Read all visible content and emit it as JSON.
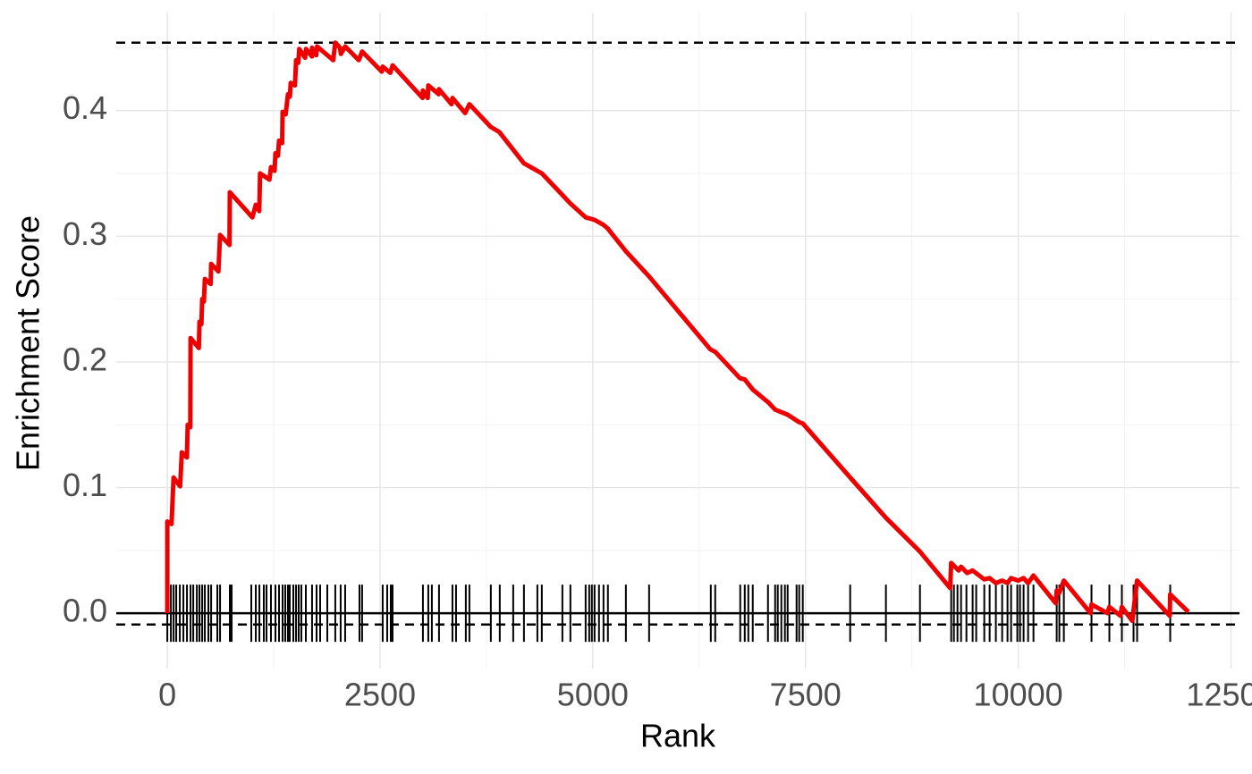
{
  "chart_data": {
    "type": "line",
    "xlabel": "Rank",
    "ylabel": "Enrichment Score",
    "xlim": [
      -600,
      12600
    ],
    "ylim": [
      -0.044,
      0.478
    ],
    "xticks": [
      0,
      2500,
      5000,
      7500,
      10000,
      12500
    ],
    "yticks": [
      {
        "value": 0,
        "label": "0.0"
      },
      0.1,
      0.2,
      0.3,
      0.4
    ],
    "minor_xticks": [
      1250,
      3750,
      6250,
      8750,
      11250
    ],
    "minor_yticks": [
      0.05,
      0.15,
      0.25,
      0.35,
      0.45
    ],
    "grid": true,
    "reference_lines": {
      "dashed": [
        0.454,
        -0.009
      ],
      "solid": [
        0
      ]
    },
    "series": [
      {
        "color": "#ee0000",
        "x": [
          0,
          0,
          50,
          74,
          150,
          170,
          230,
          240,
          270,
          273,
          370,
          378,
          400,
          410,
          430,
          441,
          510,
          515,
          600,
          620,
          730,
          735,
          1000,
          1040,
          1080,
          1090,
          1200,
          1218,
          1260,
          1271,
          1300,
          1313,
          1350,
          1355,
          1390,
          1418,
          1440,
          1450,
          1500,
          1513,
          1540,
          1550,
          1620,
          1630,
          1700,
          1701,
          1750,
          1760,
          1950,
          1974,
          2030,
          2040,
          2090,
          2250,
          2289,
          2520,
          2531,
          2620,
          2647,
          3000,
          3004,
          3060,
          3067,
          3190,
          3193,
          3340,
          3351,
          3500,
          3550,
          3800,
          3900,
          4190,
          4349,
          4401,
          4640,
          4737,
          4916,
          5021,
          5126,
          5178,
          5389,
          5662,
          6380,
          6439,
          6730,
          6786,
          6880,
          7059,
          7143,
          7290,
          7426,
          7468,
          8025,
          8445,
          8845,
          9200,
          9212,
          9300,
          9328,
          9400,
          9464,
          9600,
          9664,
          9737,
          9811,
          9874,
          9916,
          10000,
          10063,
          10116,
          10179,
          10440,
          10452,
          10480,
          10536,
          10850,
          10861,
          11050,
          11071,
          11200,
          11218,
          11340,
          11397,
          11780,
          11786,
          12000
        ],
        "values": [
          0,
          0.073,
          0.071,
          0.108,
          0.101,
          0.128,
          0.124,
          0.15,
          0.148,
          0.219,
          0.211,
          0.232,
          0.23,
          0.25,
          0.248,
          0.266,
          0.262,
          0.278,
          0.272,
          0.301,
          0.293,
          0.335,
          0.315,
          0.325,
          0.32,
          0.35,
          0.345,
          0.355,
          0.352,
          0.366,
          0.364,
          0.376,
          0.374,
          0.399,
          0.397,
          0.413,
          0.411,
          0.422,
          0.42,
          0.44,
          0.438,
          0.449,
          0.442,
          0.449,
          0.443,
          0.45,
          0.444,
          0.451,
          0.44,
          0.454,
          0.45,
          0.445,
          0.451,
          0.44,
          0.447,
          0.431,
          0.435,
          0.43,
          0.436,
          0.41,
          0.416,
          0.41,
          0.42,
          0.413,
          0.417,
          0.405,
          0.41,
          0.398,
          0.405,
          0.387,
          0.383,
          0.358,
          0.352,
          0.35,
          0.333,
          0.326,
          0.315,
          0.313,
          0.309,
          0.306,
          0.288,
          0.268,
          0.21,
          0.208,
          0.187,
          0.186,
          0.178,
          0.168,
          0.162,
          0.158,
          0.152,
          0.151,
          0.108,
          0.076,
          0.049,
          0.02,
          0.04,
          0.034,
          0.037,
          0.032,
          0.034,
          0.027,
          0.028,
          0.024,
          0.026,
          0.024,
          0.028,
          0.026,
          0.028,
          0.024,
          0.03,
          0.008,
          0.018,
          0.016,
          0.026,
          0.0,
          0.007,
          0.0,
          0.005,
          -0.002,
          0.005,
          -0.006,
          0.026,
          -0.002,
          0.015,
          0.001
        ]
      }
    ],
    "hits": [
      0,
      42,
      74,
      105,
      147,
      189,
      231,
      273,
      305,
      347,
      378,
      410,
      441,
      483,
      515,
      588,
      620,
      735,
      756,
      987,
      1040,
      1082,
      1134,
      1166,
      1218,
      1271,
      1313,
      1355,
      1386,
      1418,
      1439,
      1481,
      1513,
      1544,
      1575,
      1628,
      1701,
      1754,
      1796,
      1880,
      1974,
      2037,
      2090,
      2258,
      2289,
      2531,
      2584,
      2626,
      2647,
      3004,
      3067,
      3109,
      3193,
      3351,
      3393,
      3508,
      3550,
      3802,
      3907,
      4065,
      4191,
      4349,
      4401,
      4643,
      4737,
      4916,
      4958,
      4989,
      5021,
      5073,
      5126,
      5178,
      5389,
      5662,
      6387,
      6439,
      6733,
      6786,
      6828,
      6880,
      7059,
      7143,
      7174,
      7216,
      7258,
      7290,
      7395,
      7426,
      7468,
      8025,
      8445,
      8845,
      9212,
      9244,
      9286,
      9328,
      9391,
      9464,
      9506,
      9601,
      9664,
      9737,
      9811,
      9874,
      9916,
      9989,
      10021,
      10063,
      10116,
      10179,
      10452,
      10483,
      10536,
      10861,
      11071,
      11218,
      11355,
      11397,
      11786
    ]
  }
}
